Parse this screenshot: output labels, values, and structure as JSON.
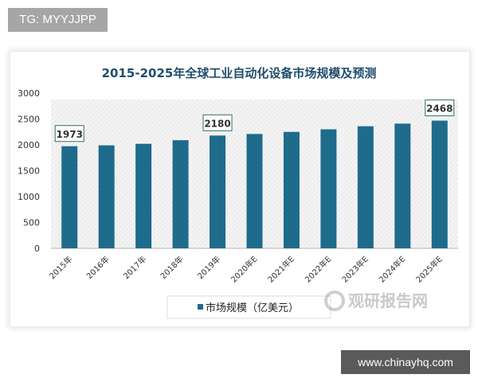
{
  "watermark_top": "TG: MYYJJPP",
  "watermark_bottom": "www.chinayhq.com",
  "logo_text": "观研报告网",
  "colors": {
    "bar": "#1e6b8c",
    "title": "#1f4e6b",
    "tag_bg": "#a6a6a6"
  },
  "chart_data": {
    "type": "bar",
    "title": "2015-2025年全球工业自动化设备市场规模及预测",
    "categories": [
      "2015年",
      "2016年",
      "2017年",
      "2018年",
      "2019年",
      "2020年E",
      "2021年E",
      "2022年E",
      "2023年E",
      "2024年E",
      "2025年E"
    ],
    "series": [
      {
        "name": "市场规模（亿美元）",
        "values": [
          1973,
          1990,
          2020,
          2090,
          2180,
          2210,
          2250,
          2300,
          2360,
          2410,
          2468
        ]
      }
    ],
    "data_labels": [
      {
        "index": 0,
        "text": "1973"
      },
      {
        "index": 4,
        "text": "2180"
      },
      {
        "index": 10,
        "text": "2468"
      }
    ],
    "ylim": [
      0,
      3000
    ],
    "yticks": [
      "0",
      "500",
      "1000",
      "1500",
      "2000",
      "2500",
      "3000"
    ],
    "grid": false,
    "legend": "bottom"
  }
}
